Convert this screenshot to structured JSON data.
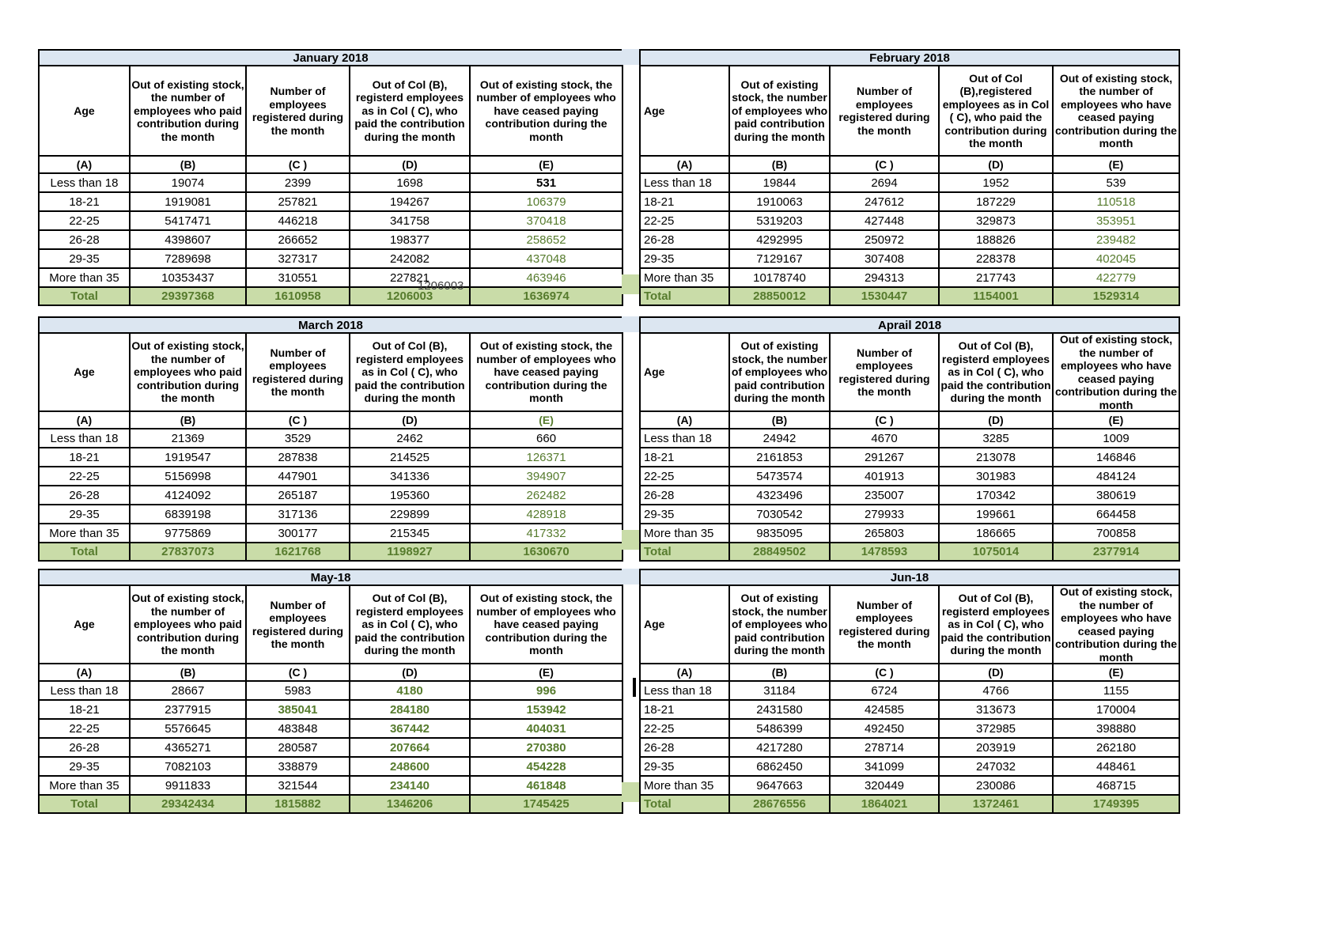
{
  "colors": {
    "title_bar_bg": "#dce6f1",
    "total_row_bg": "#c9dca8",
    "accent_green_text": "#567b2d",
    "grid_black": "#000000"
  },
  "artifact": {
    "text": "1206003"
  },
  "tables": [
    {
      "title": "January 2018",
      "headers": [
        "Age",
        "Out of existing stock, the number of employees who paid contribution during the month",
        "Number of employees registered during the month",
        "Out of Col (B), registerd employees as in Col ( C), who paid the contribution during the month",
        "Out of existing stock, the number of  employees  who have ceased paying contribution during the month"
      ],
      "col_labels": [
        "(A)",
        "(B)",
        "(C )",
        "(D)",
        "(E)"
      ],
      "col_label_styles": [
        "",
        "",
        "",
        "",
        ""
      ],
      "rows": [
        [
          "Less than 18",
          "19074",
          "2399",
          "1698",
          "531"
        ],
        [
          "18-21",
          "1919081",
          "257821",
          "194267",
          "106379"
        ],
        [
          "22-25",
          "5417471",
          "446218",
          "341758",
          "370418"
        ],
        [
          "26-28",
          "4398607",
          "266652",
          "198377",
          "258652"
        ],
        [
          "29-35",
          "7289698",
          "327317",
          "242082",
          "437048"
        ],
        [
          "More than 35",
          "10353437",
          "310551",
          "227821",
          "463946"
        ]
      ],
      "row_styles": [
        [
          "",
          "",
          "",
          "",
          "bold"
        ],
        [
          "",
          "",
          "",
          "",
          "green"
        ],
        [
          "",
          "",
          "",
          "",
          "green"
        ],
        [
          "",
          "",
          "",
          "",
          "green"
        ],
        [
          "",
          "",
          "",
          "",
          "green"
        ],
        [
          "",
          "",
          "",
          "",
          "green"
        ]
      ],
      "total": [
        "Total",
        "29397368",
        "1610958",
        "1206003",
        "1636974"
      ]
    },
    {
      "title": "February 2018",
      "headers": [
        "Age",
        "Out of existing stock, the number of employees who paid contribution during the month",
        "Number of employees registered during the month",
        "Out of Col (B),registered employees as in Col ( C), who paid the contribution during the month",
        "Out of existing stock, the number of employees  who have ceased paying contribution during the month"
      ],
      "col_labels": [
        "(A)",
        "(B)",
        "(C )",
        "(D)",
        "(E)"
      ],
      "col_label_styles": [
        "",
        "",
        "",
        "",
        ""
      ],
      "rows": [
        [
          "Less than 18",
          "19844",
          "2694",
          "1952",
          "539"
        ],
        [
          "18-21",
          "1910063",
          "247612",
          "187229",
          "110518"
        ],
        [
          "22-25",
          "5319203",
          "427448",
          "329873",
          "353951"
        ],
        [
          "26-28",
          "4292995",
          "250972",
          "188826",
          "239482"
        ],
        [
          "29-35",
          "7129167",
          "307408",
          "228378",
          "402045"
        ],
        [
          "More than 35",
          "10178740",
          "294313",
          "217743",
          "422779"
        ]
      ],
      "row_styles": [
        [
          "",
          "",
          "",
          "",
          ""
        ],
        [
          "",
          "",
          "",
          "",
          "green"
        ],
        [
          "",
          "",
          "",
          "",
          "green"
        ],
        [
          "",
          "",
          "",
          "",
          "green"
        ],
        [
          "",
          "",
          "",
          "",
          "green"
        ],
        [
          "",
          "",
          "",
          "",
          "green"
        ]
      ],
      "total": [
        "Total",
        "28850012",
        "1530447",
        "1154001",
        "1529314"
      ]
    },
    {
      "title": "March 2018",
      "headers": [
        "Age",
        "Out of existing stock, the number of employees who paid contribution during the month",
        "Number of employees registered during the month",
        "Out of Col (B), registerd employees as in Col ( C), who paid the contribution during the month",
        "Out of existing stock, the number of  employees  who have ceased paying contribution during the month"
      ],
      "col_labels": [
        "(A)",
        "(B)",
        "(C )",
        "(D)",
        "(E)"
      ],
      "col_label_styles": [
        "",
        "",
        "",
        "",
        "green"
      ],
      "rows": [
        [
          "Less than 18",
          "21369",
          "3529",
          "2462",
          "660"
        ],
        [
          "18-21",
          "1919547",
          "287838",
          "214525",
          "126371"
        ],
        [
          "22-25",
          "5156998",
          "447901",
          "341336",
          "394907"
        ],
        [
          "26-28",
          "4124092",
          "265187",
          "195360",
          "262482"
        ],
        [
          "29-35",
          "6839198",
          "317136",
          "229899",
          "428918"
        ],
        [
          "More than 35",
          "9775869",
          "300177",
          "215345",
          "417332"
        ]
      ],
      "row_styles": [
        [
          "",
          "",
          "",
          "",
          ""
        ],
        [
          "",
          "",
          "",
          "",
          "green"
        ],
        [
          "",
          "",
          "",
          "",
          "green"
        ],
        [
          "",
          "",
          "",
          "",
          "green"
        ],
        [
          "",
          "",
          "",
          "",
          "green"
        ],
        [
          "",
          "",
          "",
          "",
          "green"
        ]
      ],
      "total": [
        "Total",
        "27837073",
        "1621768",
        "1198927",
        "1630670"
      ]
    },
    {
      "title": "Aprail 2018",
      "headers": [
        "Age",
        "Out of existing stock, the number of employees who paid contribution during the month",
        "Number of employees registered during the month",
        "Out of Col (B), registerd employees as in Col ( C), who paid the contribution during the month",
        "Out of existing stock, the number of employees  who have ceased paying contribution during the month"
      ],
      "col_labels": [
        "(A)",
        "(B)",
        "(C )",
        "(D)",
        "(E)"
      ],
      "col_label_styles": [
        "",
        "",
        "",
        "",
        ""
      ],
      "rows": [
        [
          "Less than 18",
          "24942",
          "4670",
          "3285",
          "1009"
        ],
        [
          "18-21",
          "2161853",
          "291267",
          "213078",
          "146846"
        ],
        [
          "22-25",
          "5473574",
          "401913",
          "301983",
          "484124"
        ],
        [
          "26-28",
          "4323496",
          "235007",
          "170342",
          "380619"
        ],
        [
          "29-35",
          "7030542",
          "279933",
          "199661",
          "664458"
        ],
        [
          "More than 35",
          "9835095",
          "265803",
          "186665",
          "700858"
        ]
      ],
      "row_styles": [
        [
          "",
          "",
          "",
          "",
          ""
        ],
        [
          "",
          "",
          "",
          "",
          ""
        ],
        [
          "",
          "",
          "",
          "",
          ""
        ],
        [
          "",
          "",
          "",
          "",
          ""
        ],
        [
          "",
          "",
          "",
          "",
          ""
        ],
        [
          "",
          "",
          "",
          "",
          ""
        ]
      ],
      "total": [
        "Total",
        "28849502",
        "1478593",
        "1075014",
        "2377914"
      ]
    },
    {
      "title": "May-18",
      "headers": [
        "Age",
        "Out of existing stock, the number of employees who paid contribution during the month",
        "Number of employees registered during the month",
        "Out of Col (B), registerd employees as in Col ( C), who paid the contribution during the month",
        "Out of existing stock, the number of  employees  who have ceased paying contribution during the month"
      ],
      "col_labels": [
        "(A)",
        "(B)",
        "(C )",
        "(D)",
        "(E)"
      ],
      "col_label_styles": [
        "",
        "",
        "",
        "",
        ""
      ],
      "rows": [
        [
          "Less than 18",
          "28667",
          "5983",
          "4180",
          "996"
        ],
        [
          "18-21",
          "2377915",
          "385041",
          "284180",
          "153942"
        ],
        [
          "22-25",
          "5576645",
          "483848",
          "367442",
          "404031"
        ],
        [
          "26-28",
          "4365271",
          "280587",
          "207664",
          "270380"
        ],
        [
          "29-35",
          "7082103",
          "338879",
          "248600",
          "454228"
        ],
        [
          "More than 35",
          "9911833",
          "321544",
          "234140",
          "461848"
        ]
      ],
      "row_styles": [
        [
          "",
          "",
          "",
          "green bold",
          "green bold"
        ],
        [
          "",
          "",
          "green bold",
          "green bold",
          "green bold"
        ],
        [
          "",
          "",
          "",
          "green bold",
          "green bold"
        ],
        [
          "",
          "",
          "",
          "green bold",
          "green bold"
        ],
        [
          "",
          "",
          "",
          "green bold",
          "green bold"
        ],
        [
          "",
          "",
          "",
          "green bold",
          "green bold"
        ]
      ],
      "total": [
        "Total",
        "29342434",
        "1815882",
        "1346206",
        "1745425"
      ]
    },
    {
      "title": "Jun-18",
      "headers": [
        "Age",
        "Out of existing stock, the number of employees who paid contribution during the month",
        "Number of employees registered during the month",
        "Out of Col (B), registerd employees as in Col ( C), who paid the contribution during the month",
        "Out of existing stock, the number of employees  who have ceased paying contribution during the month"
      ],
      "col_labels": [
        "(A)",
        "(B)",
        "(C )",
        "(D)",
        "(E)"
      ],
      "col_label_styles": [
        "",
        "",
        "",
        "",
        ""
      ],
      "rows": [
        [
          "Less than 18",
          "31184",
          "6724",
          "4766",
          "1155"
        ],
        [
          "18-21",
          "2431580",
          "424585",
          "313673",
          "170004"
        ],
        [
          "22-25",
          "5486399",
          "492450",
          "372985",
          "398880"
        ],
        [
          "26-28",
          "4217280",
          "278714",
          "203919",
          "262180"
        ],
        [
          "29-35",
          "6862450",
          "341099",
          "247032",
          "448461"
        ],
        [
          "More than 35",
          "9647663",
          "320449",
          "230086",
          "468715"
        ]
      ],
      "row_styles": [
        [
          "",
          "",
          "",
          "",
          ""
        ],
        [
          "",
          "",
          "",
          "",
          ""
        ],
        [
          "",
          "",
          "",
          "",
          ""
        ],
        [
          "",
          "",
          "",
          "",
          ""
        ],
        [
          "",
          "",
          "",
          "",
          ""
        ],
        [
          "",
          "",
          "",
          "",
          ""
        ]
      ],
      "total": [
        "Total",
        "28676556",
        "1864021",
        "1372461",
        "1749395"
      ]
    }
  ]
}
